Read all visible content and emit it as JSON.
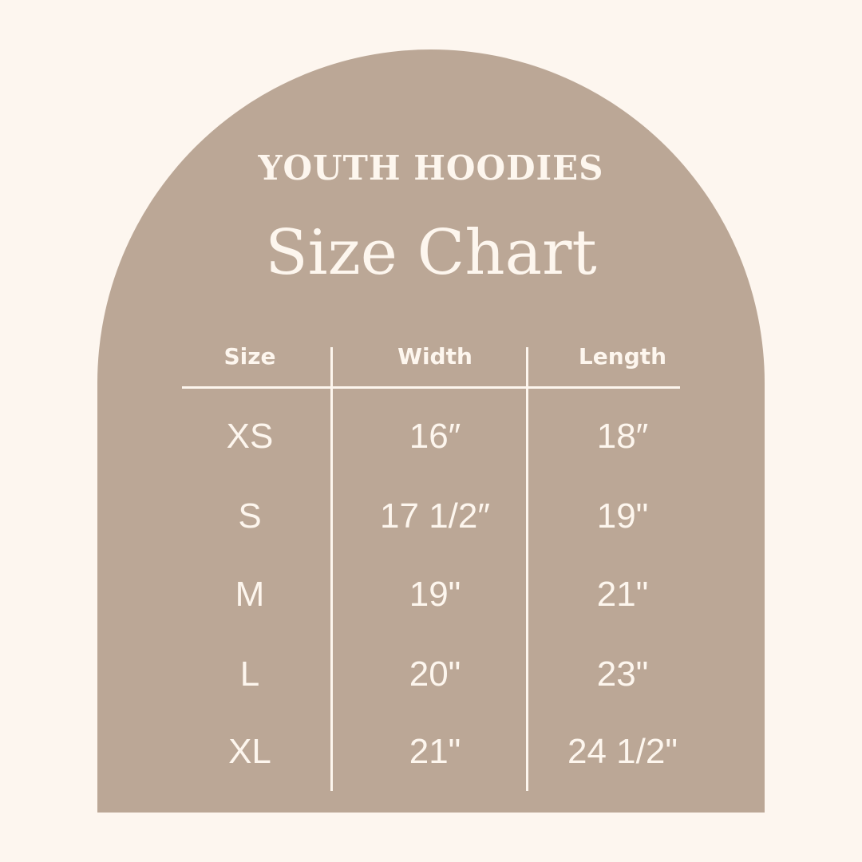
{
  "colors": {
    "background": "#fdf6ef",
    "arch": "#bba796",
    "text": "#fdf6ee"
  },
  "subtitle": "YOUTH HOODIES",
  "title": "Size Chart",
  "table": {
    "headers": [
      "Size",
      "Width",
      "Length"
    ],
    "rows": [
      [
        "XS",
        "16″",
        "18″"
      ],
      [
        "S",
        "17 1/2″",
        "19\""
      ],
      [
        "M",
        "19\"",
        "21\""
      ],
      [
        "L",
        "20\"",
        "23\""
      ],
      [
        "XL",
        "21\"",
        "24 1/2\""
      ]
    ]
  }
}
